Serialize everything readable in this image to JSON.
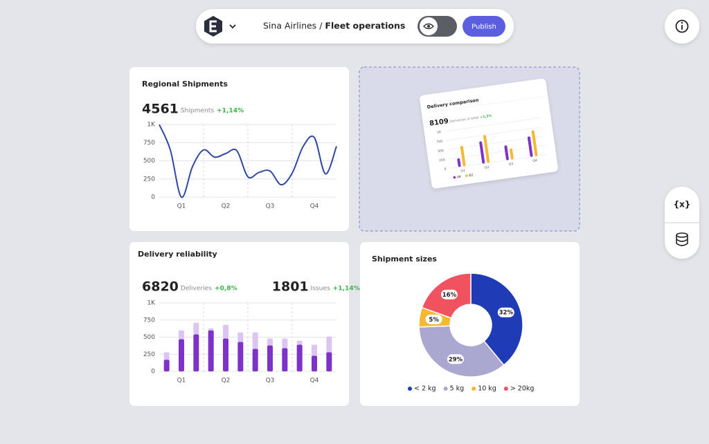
{
  "header": {
    "breadcrumb_parent": "Sina Airlines",
    "separator": "/",
    "breadcrumb_current": "Fleet operations",
    "publish": "Publish"
  },
  "toolbar": {
    "variables": "{x}"
  },
  "chart_data": [
    {
      "type": "line",
      "title": "Regional Shipments",
      "kpis": [
        {
          "value": 4561,
          "label": "Shipments",
          "change": "+1,14%"
        }
      ],
      "categories": [
        null,
        null,
        "Q1",
        null,
        null,
        null,
        "Q2",
        null,
        null,
        null,
        "Q3",
        null,
        null,
        null,
        "Q4",
        null,
        null
      ],
      "values": [
        1000,
        650,
        0,
        420,
        650,
        550,
        600,
        640,
        280,
        340,
        360,
        170,
        330,
        700,
        820,
        320,
        700
      ],
      "color": "#2f47a6",
      "ylim": [
        0,
        1000
      ],
      "yticks": [
        0,
        250,
        500,
        750,
        {
          "value": 1000,
          "label": "1K"
        }
      ],
      "grid": true
    },
    {
      "type": "stacked_bar",
      "title": "Delivery reliability",
      "kpis": [
        {
          "value": 6820,
          "label": "Deliveries",
          "change": "+0,8%"
        },
        {
          "value": 1801,
          "label": "Issues",
          "change": "+1,14%"
        }
      ],
      "categories": [
        null,
        "Q1",
        null,
        null,
        "Q2",
        null,
        null,
        "Q3",
        null,
        null,
        "Q4",
        null
      ],
      "series": [
        {
          "color": "#7d32c8",
          "values": [
            170,
            470,
            540,
            600,
            480,
            430,
            330,
            380,
            340,
            390,
            230,
            280
          ]
        },
        {
          "color": "#dcc6f1",
          "values": [
            110,
            130,
            170,
            30,
            200,
            140,
            240,
            100,
            140,
            60,
            160,
            230
          ]
        }
      ],
      "ylim": [
        0,
        1000
      ],
      "yticks": [
        0,
        250,
        500,
        750,
        {
          "value": 1000,
          "label": "1K"
        }
      ],
      "grid": true
    },
    {
      "type": "donut",
      "title": "Shipment sizes",
      "categories": [
        "< 2 kg",
        "5 kg",
        "10 kg",
        "> 20kg"
      ],
      "values": [
        32,
        29,
        5,
        16
      ],
      "value_labels": [
        "32%",
        "29%",
        "5%",
        "16%"
      ],
      "colors": [
        "#1f3bb6",
        "#aaa8d0",
        "#f6b733",
        "#f0525f"
      ]
    },
    {
      "type": "grouped_bar",
      "title": "Delivery comparison",
      "kpis": [
        {
          "value": 8109,
          "label": "Deliveries in total",
          "change": "+1,3%"
        }
      ],
      "categories": [
        "Q1",
        "Q2",
        "Q3",
        "Q4"
      ],
      "series": [
        {
          "name": "UK",
          "color": "#7d32c8",
          "values": [
            230,
            600,
            400,
            550
          ]
        },
        {
          "name": "EU",
          "color": "#f6b733",
          "values": [
            550,
            750,
            300,
            700
          ]
        }
      ],
      "ylim": [
        0,
        1000
      ],
      "yticks": [
        0,
        250,
        500,
        750,
        {
          "value": 1000,
          "label": "1K"
        }
      ],
      "grid": true
    }
  ]
}
